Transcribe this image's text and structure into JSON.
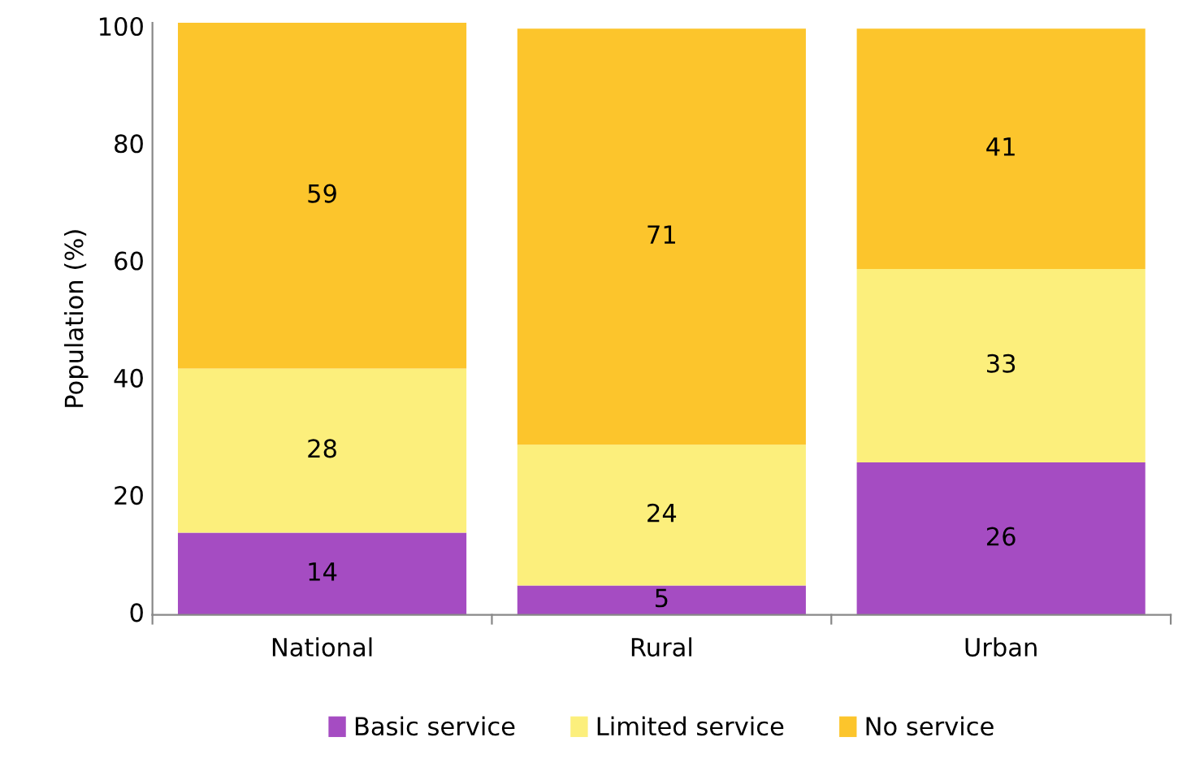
{
  "chart_data": {
    "type": "bar",
    "stacked": true,
    "ylabel": "Population (%)",
    "categories": [
      "National",
      "Rural",
      "Urban"
    ],
    "series": [
      {
        "name": "Basic service",
        "color": "#a54cc2",
        "values": [
          14,
          5,
          26
        ]
      },
      {
        "name": "Limited service",
        "color": "#fcef7c",
        "values": [
          28,
          24,
          33
        ]
      },
      {
        "name": "No service",
        "color": "#fcc52c",
        "values": [
          59,
          71,
          41
        ]
      }
    ],
    "ylim": [
      0,
      101
    ],
    "yticks": [
      0,
      20,
      40,
      60,
      80,
      100
    ],
    "data_labels": true,
    "grid": false,
    "legend": "bottom"
  }
}
